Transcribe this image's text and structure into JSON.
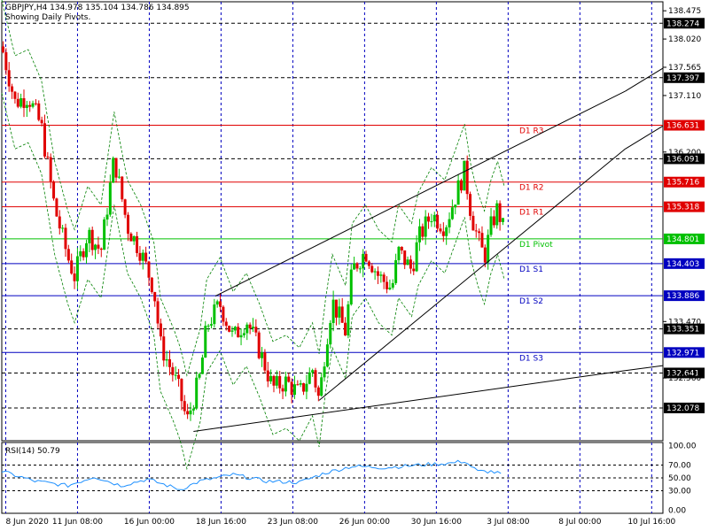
{
  "header": {
    "symbol_line": "GBPJPY,H4  134.978 135.104 134.786 134.895",
    "pivots_line": "Showing Daily Pivots."
  },
  "rsi_label": "RSI(14) 50.79",
  "colors": {
    "bull": "#00c000",
    "bear": "#e00000",
    "resistance": "#e00000",
    "pivot": "#00c000",
    "support": "#0000c0",
    "band": "#008000",
    "rsi": "#1e90ff",
    "highlight_box": "#000000",
    "grid": "#0000c0"
  },
  "chart_data": {
    "type": "candlestick",
    "symbol": "GBPJPY",
    "timeframe": "H4",
    "ylim": [
      131.55,
      138.62
    ],
    "y_ticks": [
      "138.475",
      "138.020",
      "137.565",
      "137.110",
      "136.200",
      "133.470",
      "132.560"
    ],
    "x_ticks": [
      "8 Jun 2020",
      "11 Jun 08:00",
      "16 Jun 00:00",
      "18 Jun 16:00",
      "23 Jun 08:00",
      "26 Jun 00:00",
      "30 Jun 16:00",
      "3 Jul 08:00",
      "8 Jul 00:00",
      "10 Jul 16:00"
    ],
    "pivot_levels": [
      {
        "label": "D1 R3",
        "value": 136.631,
        "price": "136.631",
        "kind": "resistance"
      },
      {
        "label": "D1 R2",
        "value": 135.716,
        "price": "135.716",
        "kind": "resistance"
      },
      {
        "label": "D1 R1",
        "value": 135.318,
        "price": "135.318",
        "kind": "resistance"
      },
      {
        "label": "D1 Pivot",
        "value": 134.801,
        "price": "134.801",
        "kind": "pivot"
      },
      {
        "label": "D1 S1",
        "value": 134.403,
        "price": "134.403",
        "kind": "support"
      },
      {
        "label": "D1 S2",
        "value": 133.886,
        "price": "133.886",
        "kind": "support"
      },
      {
        "label": "D1 S3",
        "value": 132.971,
        "price": "132.971",
        "kind": "support"
      }
    ],
    "dashed_levels": [
      {
        "value": 138.274,
        "price": "138.274"
      },
      {
        "value": 137.397,
        "price": "137.397"
      },
      {
        "value": 136.091,
        "price": "136.091"
      },
      {
        "value": 133.351,
        "price": "133.351"
      },
      {
        "value": 132.641,
        "price": "132.641"
      },
      {
        "value": 132.078,
        "price": "132.078"
      }
    ],
    "trendlines": [
      {
        "name": "upper-channel",
        "p1": [
          0.323,
          133.88
        ],
        "p2": [
          0.943,
          137.18
        ]
      },
      {
        "name": "lower-channel",
        "p1": [
          0.48,
          132.2
        ],
        "p2": [
          0.943,
          136.25
        ]
      },
      {
        "name": "base-line",
        "p1": [
          0.29,
          131.7
        ],
        "p2": [
          0.943,
          132.68
        ]
      }
    ],
    "close_path": [
      [
        0,
        137.9
      ],
      [
        0.02,
        137.0
      ],
      [
        0.04,
        137.1
      ],
      [
        0.06,
        136.6
      ],
      [
        0.08,
        135.3
      ],
      [
        0.1,
        134.5
      ],
      [
        0.11,
        134.2
      ],
      [
        0.13,
        134.9
      ],
      [
        0.15,
        134.6
      ],
      [
        0.17,
        136.1
      ],
      [
        0.19,
        135.0
      ],
      [
        0.21,
        134.6
      ],
      [
        0.23,
        134.0
      ],
      [
        0.24,
        133.1
      ],
      [
        0.26,
        132.6
      ],
      [
        0.27,
        132.3
      ],
      [
        0.28,
        131.85
      ],
      [
        0.3,
        132.6
      ],
      [
        0.31,
        133.4
      ],
      [
        0.33,
        133.75
      ],
      [
        0.35,
        133.2
      ],
      [
        0.37,
        133.5
      ],
      [
        0.39,
        133.0
      ],
      [
        0.41,
        132.4
      ],
      [
        0.43,
        132.5
      ],
      [
        0.45,
        132.3
      ],
      [
        0.47,
        132.7
      ],
      [
        0.48,
        132.2
      ],
      [
        0.49,
        133.1
      ],
      [
        0.5,
        133.8
      ],
      [
        0.52,
        133.3
      ],
      [
        0.53,
        134.3
      ],
      [
        0.55,
        134.6
      ],
      [
        0.57,
        134.2
      ],
      [
        0.59,
        134.0
      ],
      [
        0.6,
        134.6
      ],
      [
        0.62,
        134.3
      ],
      [
        0.63,
        134.8
      ],
      [
        0.65,
        135.2
      ],
      [
        0.67,
        135.0
      ],
      [
        0.69,
        135.6
      ],
      [
        0.7,
        135.9
      ],
      [
        0.71,
        135.2
      ],
      [
        0.72,
        134.8
      ],
      [
        0.73,
        134.5
      ],
      [
        0.74,
        135.0
      ],
      [
        0.75,
        135.3
      ],
      [
        0.76,
        134.9
      ]
    ],
    "rsi": {
      "name": "RSI(14)",
      "value": 50.79,
      "ylim": [
        -5,
        105
      ],
      "y_ticks": [
        "100.00",
        "70.00",
        "50.00",
        "30.00",
        "0.00"
      ],
      "levels": [
        70,
        50,
        30
      ],
      "points": [
        [
          0,
          60
        ],
        [
          0.05,
          45
        ],
        [
          0.1,
          38
        ],
        [
          0.14,
          52
        ],
        [
          0.18,
          38
        ],
        [
          0.22,
          48
        ],
        [
          0.27,
          32
        ],
        [
          0.3,
          45
        ],
        [
          0.35,
          55
        ],
        [
          0.4,
          45
        ],
        [
          0.45,
          43
        ],
        [
          0.49,
          58
        ],
        [
          0.53,
          68
        ],
        [
          0.58,
          66
        ],
        [
          0.63,
          70
        ],
        [
          0.68,
          73
        ],
        [
          0.7,
          76
        ],
        [
          0.72,
          60
        ],
        [
          0.74,
          60
        ],
        [
          0.76,
          55
        ]
      ]
    }
  }
}
